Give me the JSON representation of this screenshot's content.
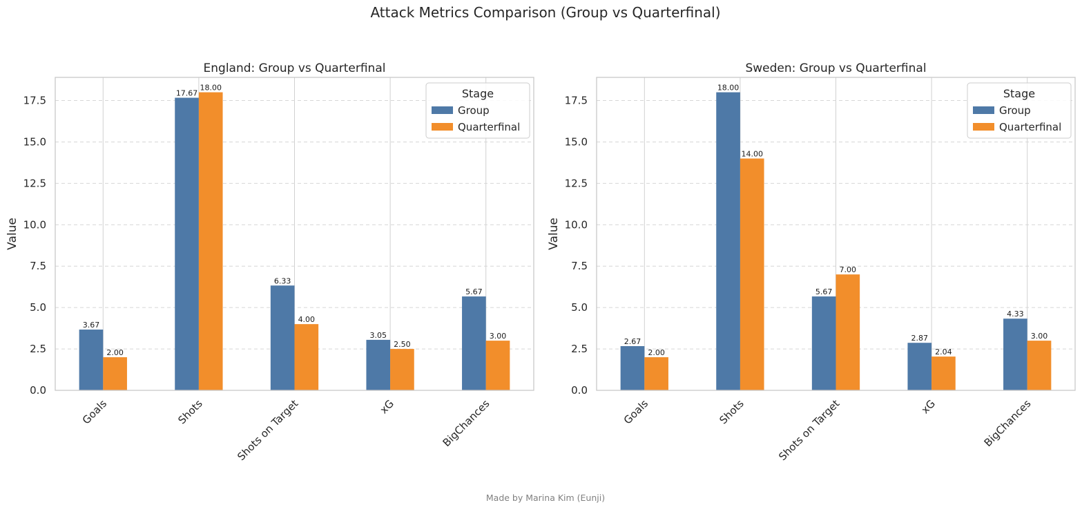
{
  "figure": {
    "suptitle": "Attack Metrics Comparison (Group vs Quarterfinal)",
    "footer": "Made by Marina Kim (Eunji)"
  },
  "colors": {
    "group": "#4e79a7",
    "quarterfinal": "#f28e2b"
  },
  "chart_data": [
    {
      "type": "bar",
      "title": "England: Group vs Quarterfinal",
      "xlabel": "",
      "ylabel": "Value",
      "ylim": [
        0,
        18.9
      ],
      "yticks": [
        "0.0",
        "2.5",
        "5.0",
        "7.5",
        "10.0",
        "12.5",
        "15.0",
        "17.5"
      ],
      "categories": [
        "Goals",
        "Shots",
        "Shots on Target",
        "xG",
        "BigChances"
      ],
      "legend_title": "Stage",
      "legend_position": "upper right",
      "grid": true,
      "series": [
        {
          "name": "Group",
          "values": [
            3.67,
            17.67,
            6.33,
            3.05,
            5.67
          ],
          "labels": [
            "3.67",
            "17.67",
            "6.33",
            "3.05",
            "5.67"
          ]
        },
        {
          "name": "Quarterfinal",
          "values": [
            2.0,
            18.0,
            4.0,
            2.5,
            3.0
          ],
          "labels": [
            "2.00",
            "18.00",
            "4.00",
            "2.50",
            "3.00"
          ]
        }
      ]
    },
    {
      "type": "bar",
      "title": "Sweden: Group vs Quarterfinal",
      "xlabel": "",
      "ylabel": "Value",
      "ylim": [
        0,
        18.9
      ],
      "yticks": [
        "0.0",
        "2.5",
        "5.0",
        "7.5",
        "10.0",
        "12.5",
        "15.0",
        "17.5"
      ],
      "categories": [
        "Goals",
        "Shots",
        "Shots on Target",
        "xG",
        "BigChances"
      ],
      "legend_title": "Stage",
      "legend_position": "upper right",
      "grid": true,
      "series": [
        {
          "name": "Group",
          "values": [
            2.67,
            18.0,
            5.67,
            2.87,
            4.33
          ],
          "labels": [
            "2.67",
            "18.00",
            "5.67",
            "2.87",
            "4.33"
          ]
        },
        {
          "name": "Quarterfinal",
          "values": [
            2.0,
            14.0,
            7.0,
            2.04,
            3.0
          ],
          "labels": [
            "2.00",
            "14.00",
            "7.00",
            "2.04",
            "3.00"
          ]
        }
      ]
    }
  ]
}
